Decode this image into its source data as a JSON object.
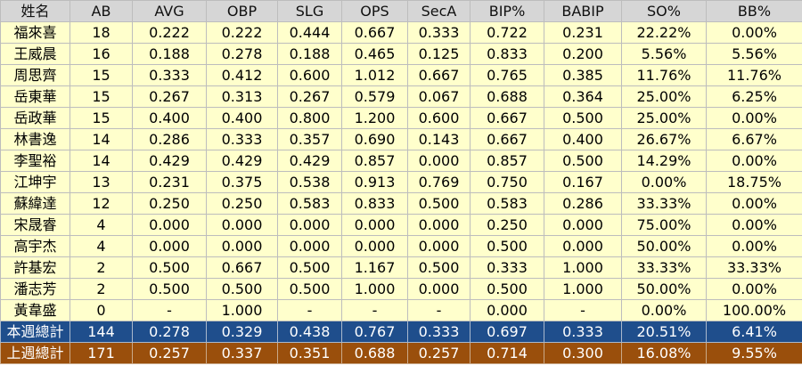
{
  "headers": [
    "姓名",
    "AB",
    "AVG",
    "OBP",
    "SLG",
    "OPS",
    "SecA",
    "BIP%",
    "BABIP",
    "SO%",
    "BB%"
  ],
  "rows": [
    [
      "福來喜",
      "18",
      "0.222",
      "0.222",
      "0.444",
      "0.667",
      "0.333",
      "0.722",
      "0.231",
      "22.22%",
      "0.00%"
    ],
    [
      "王威晨",
      "16",
      "0.188",
      "0.278",
      "0.188",
      "0.465",
      "0.125",
      "0.833",
      "0.200",
      "5.56%",
      "5.56%"
    ],
    [
      "周思齊",
      "15",
      "0.333",
      "0.412",
      "0.600",
      "1.012",
      "0.667",
      "0.765",
      "0.385",
      "11.76%",
      "11.76%"
    ],
    [
      "岳東華",
      "15",
      "0.267",
      "0.313",
      "0.267",
      "0.579",
      "0.067",
      "0.688",
      "0.364",
      "25.00%",
      "6.25%"
    ],
    [
      "岳政華",
      "15",
      "0.400",
      "0.400",
      "0.800",
      "1.200",
      "0.600",
      "0.667",
      "0.500",
      "25.00%",
      "0.00%"
    ],
    [
      "林書逸",
      "14",
      "0.286",
      "0.333",
      "0.357",
      "0.690",
      "0.143",
      "0.667",
      "0.400",
      "26.67%",
      "6.67%"
    ],
    [
      "李聖裕",
      "14",
      "0.429",
      "0.429",
      "0.429",
      "0.857",
      "0.000",
      "0.857",
      "0.500",
      "14.29%",
      "0.00%"
    ],
    [
      "江坤宇",
      "13",
      "0.231",
      "0.375",
      "0.538",
      "0.913",
      "0.769",
      "0.750",
      "0.167",
      "0.00%",
      "18.75%"
    ],
    [
      "蘇緯達",
      "12",
      "0.250",
      "0.250",
      "0.583",
      "0.833",
      "0.500",
      "0.583",
      "0.286",
      "33.33%",
      "0.00%"
    ],
    [
      "宋晟睿",
      "4",
      "0.000",
      "0.000",
      "0.000",
      "0.000",
      "0.000",
      "0.250",
      "0.000",
      "75.00%",
      "0.00%"
    ],
    [
      "高宇杰",
      "4",
      "0.000",
      "0.000",
      "0.000",
      "0.000",
      "0.000",
      "0.500",
      "0.000",
      "50.00%",
      "0.00%"
    ],
    [
      "許基宏",
      "2",
      "0.500",
      "0.667",
      "0.500",
      "1.167",
      "0.500",
      "0.333",
      "1.000",
      "33.33%",
      "33.33%"
    ],
    [
      "潘志芳",
      "2",
      "0.500",
      "0.500",
      "0.500",
      "1.000",
      "0.000",
      "0.500",
      "1.000",
      "50.00%",
      "0.00%"
    ],
    [
      "黃韋盛",
      "0",
      "-",
      "1.000",
      "-",
      "-",
      "-",
      "0.000",
      "-",
      "0.00%",
      "100.00%"
    ]
  ],
  "totals_this_week": [
    "本週總計",
    "144",
    "0.278",
    "0.329",
    "0.438",
    "0.767",
    "0.333",
    "0.697",
    "0.333",
    "20.51%",
    "6.41%"
  ],
  "totals_last_week": [
    "上週總計",
    "171",
    "0.257",
    "0.337",
    "0.351",
    "0.688",
    "0.257",
    "0.714",
    "0.300",
    "16.08%",
    "9.55%"
  ],
  "colors": {
    "header_bg": "#d6d6d6",
    "row_bg": "#ffffcc",
    "this_week_bg": "#1f4e8c",
    "last_week_bg": "#9a4f0c"
  }
}
